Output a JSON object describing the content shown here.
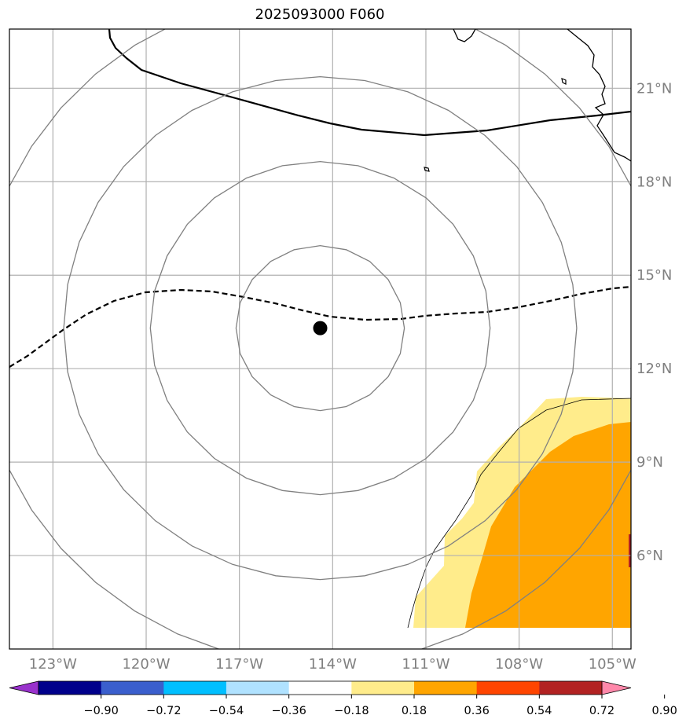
{
  "title": "2025093000 F060",
  "map": {
    "lon_labels": [
      "123°W",
      "120°W",
      "117°W",
      "114°W",
      "111°W",
      "108°W",
      "105°W"
    ],
    "lat_labels": [
      "21°N",
      "18°N",
      "15°N",
      "12°N",
      "9°N",
      "6°N"
    ],
    "lon_values": [
      -123,
      -120,
      -117,
      -114,
      -111,
      -108,
      -105
    ],
    "lat_values": [
      21,
      18,
      15,
      12,
      9,
      6
    ],
    "extent": {
      "lon": [
        -124.4,
        -104.4
      ],
      "lat": [
        3.0,
        22.9
      ]
    },
    "storm_center": {
      "lon": -114.4,
      "lat": 13.3
    },
    "range_rings": 4,
    "gridlines": true
  },
  "colorbar": {
    "ticks": [
      "−0.90",
      "−0.72",
      "−0.54",
      "−0.36",
      "−0.18",
      "0.18",
      "0.36",
      "0.54",
      "0.72",
      "0.90"
    ],
    "colors": [
      "#9932cc",
      "#00008b",
      "#3a5fcd",
      "#00bfff",
      "#b0e2ff",
      "#ffffff",
      "#ffec8b",
      "#ffa500",
      "#ff4500",
      "#b22222",
      "#ff88aa"
    ],
    "extend": "both"
  },
  "colors": {
    "ring": "#808080",
    "grid": "#b0b0b0",
    "coast": "#000000",
    "shade_light": "#ffec8b",
    "shade_mid": "#ffa500"
  }
}
